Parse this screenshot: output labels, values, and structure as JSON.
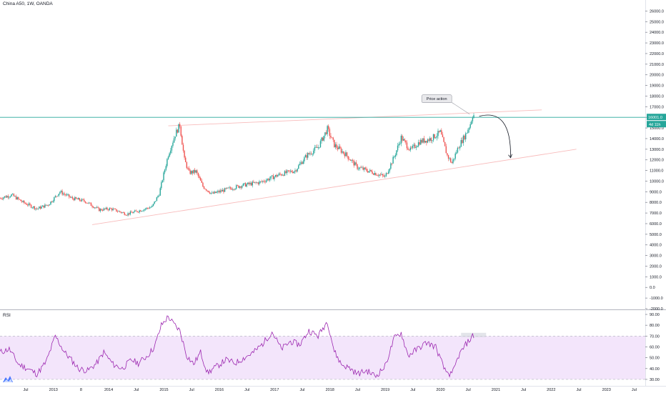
{
  "header": {
    "title": "China A50, 1W, OANDA"
  },
  "rsi_panel": {
    "label": "RSI"
  },
  "colors": {
    "up": "#26a69a",
    "down": "#ef5350",
    "hline": "#26a69a",
    "trend": "#f8bcbc",
    "rsi_line": "#9c27b0",
    "rsi_band": "#f3e5fb",
    "axis_text": "#131722",
    "price_badge": "#26a69a"
  },
  "chart_data": [
    {
      "type": "candlestick",
      "title": "China A50, 1W, OANDA",
      "y_ticks": [
        "26000.0",
        "25000.0",
        "24000.0",
        "23000.0",
        "22000.0",
        "21000.0",
        "20000.0",
        "19000.0",
        "18000.0",
        "17000.0",
        "16001.0",
        "15000.0",
        "14000.0",
        "13000.0",
        "12000.0",
        "11000.0",
        "10000.0",
        "9000.0",
        "8000.0",
        "7000.0",
        "6000.0",
        "5000.0",
        "4000.0",
        "3000.0",
        "2000.0",
        "1000.0",
        "0.0",
        "-1000.0",
        "-2000.0"
      ],
      "ylim": [
        -2000,
        26500
      ],
      "x_ticks": [
        "Jul",
        "2013",
        "8",
        "2014",
        "Jul",
        "2015",
        "Jul",
        "2016",
        "Jul",
        "2017",
        "Jul",
        "2018",
        "Jul",
        "2019",
        "Jul",
        "2020",
        "Jul",
        "2021",
        "Jul",
        "2022",
        "Jul",
        "2023",
        "Jul"
      ],
      "current_price": "16001.0",
      "countdown": "4d 11h",
      "horizontal_line": 16000,
      "anchors": [
        {
          "t": 0,
          "v": 8400
        },
        {
          "t": 10,
          "v": 8700
        },
        {
          "t": 20,
          "v": 8000
        },
        {
          "t": 32,
          "v": 7400
        },
        {
          "t": 42,
          "v": 7800
        },
        {
          "t": 52,
          "v": 9000
        },
        {
          "t": 62,
          "v": 8400
        },
        {
          "t": 74,
          "v": 8100
        },
        {
          "t": 86,
          "v": 7300
        },
        {
          "t": 96,
          "v": 7400
        },
        {
          "t": 110,
          "v": 6900
        },
        {
          "t": 120,
          "v": 7200
        },
        {
          "t": 132,
          "v": 7600
        },
        {
          "t": 138,
          "v": 8800
        },
        {
          "t": 146,
          "v": 12500
        },
        {
          "t": 152,
          "v": 14400
        },
        {
          "t": 156,
          "v": 15300
        },
        {
          "t": 160,
          "v": 12000
        },
        {
          "t": 164,
          "v": 10800
        },
        {
          "t": 170,
          "v": 10900
        },
        {
          "t": 176,
          "v": 9500
        },
        {
          "t": 184,
          "v": 8800
        },
        {
          "t": 196,
          "v": 9200
        },
        {
          "t": 210,
          "v": 9600
        },
        {
          "t": 226,
          "v": 9900
        },
        {
          "t": 242,
          "v": 10600
        },
        {
          "t": 256,
          "v": 11000
        },
        {
          "t": 266,
          "v": 12400
        },
        {
          "t": 276,
          "v": 13200
        },
        {
          "t": 284,
          "v": 14900
        },
        {
          "t": 290,
          "v": 13400
        },
        {
          "t": 300,
          "v": 12500
        },
        {
          "t": 310,
          "v": 11300
        },
        {
          "t": 324,
          "v": 10800
        },
        {
          "t": 334,
          "v": 10400
        },
        {
          "t": 342,
          "v": 12300
        },
        {
          "t": 348,
          "v": 14100
        },
        {
          "t": 356,
          "v": 12900
        },
        {
          "t": 364,
          "v": 13700
        },
        {
          "t": 374,
          "v": 14000
        },
        {
          "t": 382,
          "v": 14600
        },
        {
          "t": 388,
          "v": 12400
        },
        {
          "t": 392,
          "v": 11700
        },
        {
          "t": 398,
          "v": 13300
        },
        {
          "t": 404,
          "v": 14400
        },
        {
          "t": 408,
          "v": 15400
        },
        {
          "t": 410,
          "v": 16200
        }
      ],
      "trendlines": [
        {
          "from": {
            "t": 146,
            "v": 15200
          },
          "to": {
            "t": 470,
            "v": 16700
          }
        },
        {
          "from": {
            "t": 80,
            "v": 5900
          },
          "to": {
            "t": 500,
            "v": 13000
          }
        }
      ],
      "forecast_arrow": {
        "from": {
          "t": 412,
          "v": 16100
        },
        "to": {
          "t": 438,
          "v": 12200
        }
      },
      "annotation": {
        "text": "Price action",
        "anchor": {
          "t": 408,
          "v": 16100
        }
      }
    },
    {
      "type": "line",
      "title": "RSI",
      "y_ticks": [
        "90.00",
        "80.00",
        "70.00",
        "60.00",
        "50.00",
        "40.00",
        "30.00"
      ],
      "ylim": [
        26,
        92
      ],
      "band": [
        30,
        70
      ],
      "anchors": [
        {
          "t": 0,
          "v": 55
        },
        {
          "t": 8,
          "v": 58
        },
        {
          "t": 16,
          "v": 44
        },
        {
          "t": 24,
          "v": 40
        },
        {
          "t": 32,
          "v": 35
        },
        {
          "t": 40,
          "v": 46
        },
        {
          "t": 48,
          "v": 70
        },
        {
          "t": 56,
          "v": 55
        },
        {
          "t": 62,
          "v": 48
        },
        {
          "t": 68,
          "v": 40
        },
        {
          "t": 76,
          "v": 38
        },
        {
          "t": 84,
          "v": 45
        },
        {
          "t": 90,
          "v": 55
        },
        {
          "t": 98,
          "v": 44
        },
        {
          "t": 106,
          "v": 40
        },
        {
          "t": 114,
          "v": 48
        },
        {
          "t": 120,
          "v": 45
        },
        {
          "t": 128,
          "v": 52
        },
        {
          "t": 134,
          "v": 60
        },
        {
          "t": 140,
          "v": 80
        },
        {
          "t": 146,
          "v": 88
        },
        {
          "t": 150,
          "v": 82
        },
        {
          "t": 156,
          "v": 75
        },
        {
          "t": 162,
          "v": 52
        },
        {
          "t": 168,
          "v": 44
        },
        {
          "t": 174,
          "v": 55
        },
        {
          "t": 180,
          "v": 36
        },
        {
          "t": 188,
          "v": 42
        },
        {
          "t": 196,
          "v": 48
        },
        {
          "t": 204,
          "v": 45
        },
        {
          "t": 212,
          "v": 50
        },
        {
          "t": 220,
          "v": 55
        },
        {
          "t": 228,
          "v": 63
        },
        {
          "t": 236,
          "v": 74
        },
        {
          "t": 244,
          "v": 58
        },
        {
          "t": 252,
          "v": 65
        },
        {
          "t": 260,
          "v": 62
        },
        {
          "t": 268,
          "v": 75
        },
        {
          "t": 276,
          "v": 70
        },
        {
          "t": 284,
          "v": 84
        },
        {
          "t": 290,
          "v": 56
        },
        {
          "t": 296,
          "v": 44
        },
        {
          "t": 304,
          "v": 40
        },
        {
          "t": 310,
          "v": 35
        },
        {
          "t": 318,
          "v": 38
        },
        {
          "t": 326,
          "v": 33
        },
        {
          "t": 334,
          "v": 42
        },
        {
          "t": 342,
          "v": 68
        },
        {
          "t": 348,
          "v": 73
        },
        {
          "t": 354,
          "v": 52
        },
        {
          "t": 362,
          "v": 58
        },
        {
          "t": 370,
          "v": 64
        },
        {
          "t": 378,
          "v": 60
        },
        {
          "t": 386,
          "v": 38
        },
        {
          "t": 392,
          "v": 34
        },
        {
          "t": 398,
          "v": 52
        },
        {
          "t": 404,
          "v": 62
        },
        {
          "t": 410,
          "v": 70
        }
      ]
    }
  ]
}
